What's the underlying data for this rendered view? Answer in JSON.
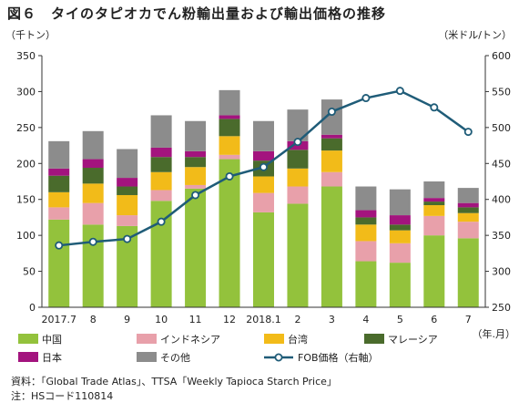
{
  "header": {
    "title": "図６　タイのタピオカでん粉輸出量および輸出価格の推移",
    "unit_left": "（千トン）",
    "unit_right": "（米ドル/トン）"
  },
  "notes": {
    "source": "資料：「Global Trade Atlas」、TTSA「Weekly Tapioca Starch Price」",
    "remark": "注：HSコード110814"
  },
  "chart_data": {
    "type": "bar",
    "stacked": true,
    "categories": [
      "2017.7",
      "8",
      "9",
      "10",
      "11",
      "12",
      "2018.1",
      "2",
      "3",
      "4",
      "5",
      "6",
      "7"
    ],
    "x_unit_label": "（年.月）",
    "y_left": {
      "min": 0,
      "max": 350,
      "ticks": [
        0,
        50,
        100,
        150,
        200,
        250,
        300,
        350
      ]
    },
    "y_right": {
      "min": 250,
      "max": 600,
      "ticks": [
        250,
        300,
        350,
        400,
        450,
        500,
        550,
        600
      ]
    },
    "series": [
      {
        "name": "中国",
        "color": "#93c23c",
        "values": [
          122,
          115,
          113,
          148,
          165,
          206,
          132,
          144,
          168,
          64,
          62,
          100,
          96
        ]
      },
      {
        "name": "インドネシア",
        "color": "#e8a0aa",
        "values": [
          17,
          30,
          15,
          15,
          5,
          6,
          27,
          24,
          20,
          28,
          27,
          27,
          23
        ]
      },
      {
        "name": "台湾",
        "color": "#f2bb19",
        "values": [
          21,
          27,
          28,
          25,
          25,
          26,
          23,
          25,
          30,
          23,
          18,
          15,
          12
        ]
      },
      {
        "name": "マレーシア",
        "color": "#4a6b2c",
        "values": [
          23,
          22,
          12,
          21,
          14,
          24,
          22,
          26,
          17,
          10,
          8,
          5,
          8
        ]
      },
      {
        "name": "日本",
        "color": "#a3147e",
        "values": [
          10,
          12,
          12,
          13,
          8,
          5,
          13,
          12,
          5,
          10,
          13,
          5,
          6
        ]
      },
      {
        "name": "その他",
        "color": "#8c8c8c",
        "values": [
          38,
          39,
          40,
          45,
          42,
          35,
          42,
          44,
          49,
          33,
          36,
          23,
          21
        ]
      }
    ],
    "line": {
      "name": "FOB価格（右軸）",
      "color": "#1f5c78",
      "axis": "right",
      "values": [
        336,
        341,
        345,
        369,
        406,
        432,
        445,
        480,
        522,
        541,
        551,
        528,
        494
      ]
    },
    "legend_position": "bottom",
    "grid": false
  }
}
